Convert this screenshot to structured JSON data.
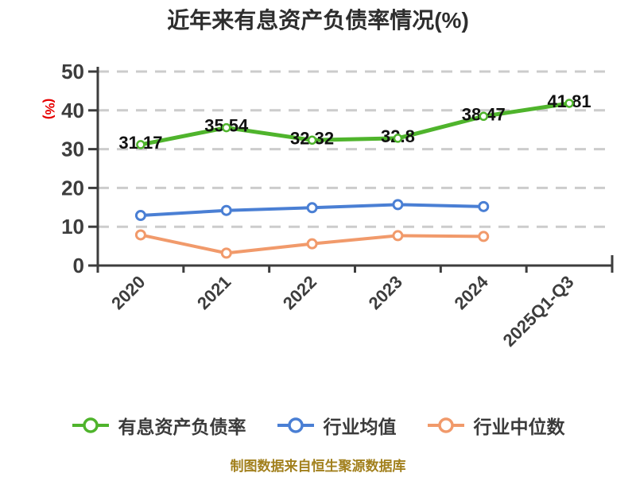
{
  "chart_data": {
    "type": "line",
    "title": "近年来有息资产负债率情况(%)",
    "y_axis_name": "(%)",
    "y_axis_name_color": "#e60000",
    "categories": [
      "2020",
      "2021",
      "2022",
      "2023",
      "2024",
      "2025Q1-Q3"
    ],
    "y_ticks": [
      0,
      10,
      20,
      30,
      40,
      50
    ],
    "ylim": [
      0,
      50
    ],
    "grid": "dashed-horizontal",
    "grid_color": "#cccccc",
    "axis_color": "#3d3d3d",
    "legend_position": "bottom",
    "series": [
      {
        "name": "有息资产负债率",
        "color": "#4fb42c",
        "values": [
          31.17,
          35.54,
          32.32,
          32.8,
          38.47,
          41.81
        ],
        "data_labels": [
          "31.17",
          "35.54",
          "32.32",
          "32.8",
          "38.47",
          "41.81"
        ]
      },
      {
        "name": "行业均值",
        "color": "#4a7fd4",
        "values": [
          12.9,
          14.2,
          14.9,
          15.7,
          15.2
        ]
      },
      {
        "name": "行业中位数",
        "color": "#f19a6b",
        "values": [
          7.9,
          3.2,
          5.6,
          7.7,
          7.5
        ]
      }
    ]
  },
  "footer": {
    "source_note": "制图数据来自恒生聚源数据库",
    "color": "#a2801d"
  }
}
